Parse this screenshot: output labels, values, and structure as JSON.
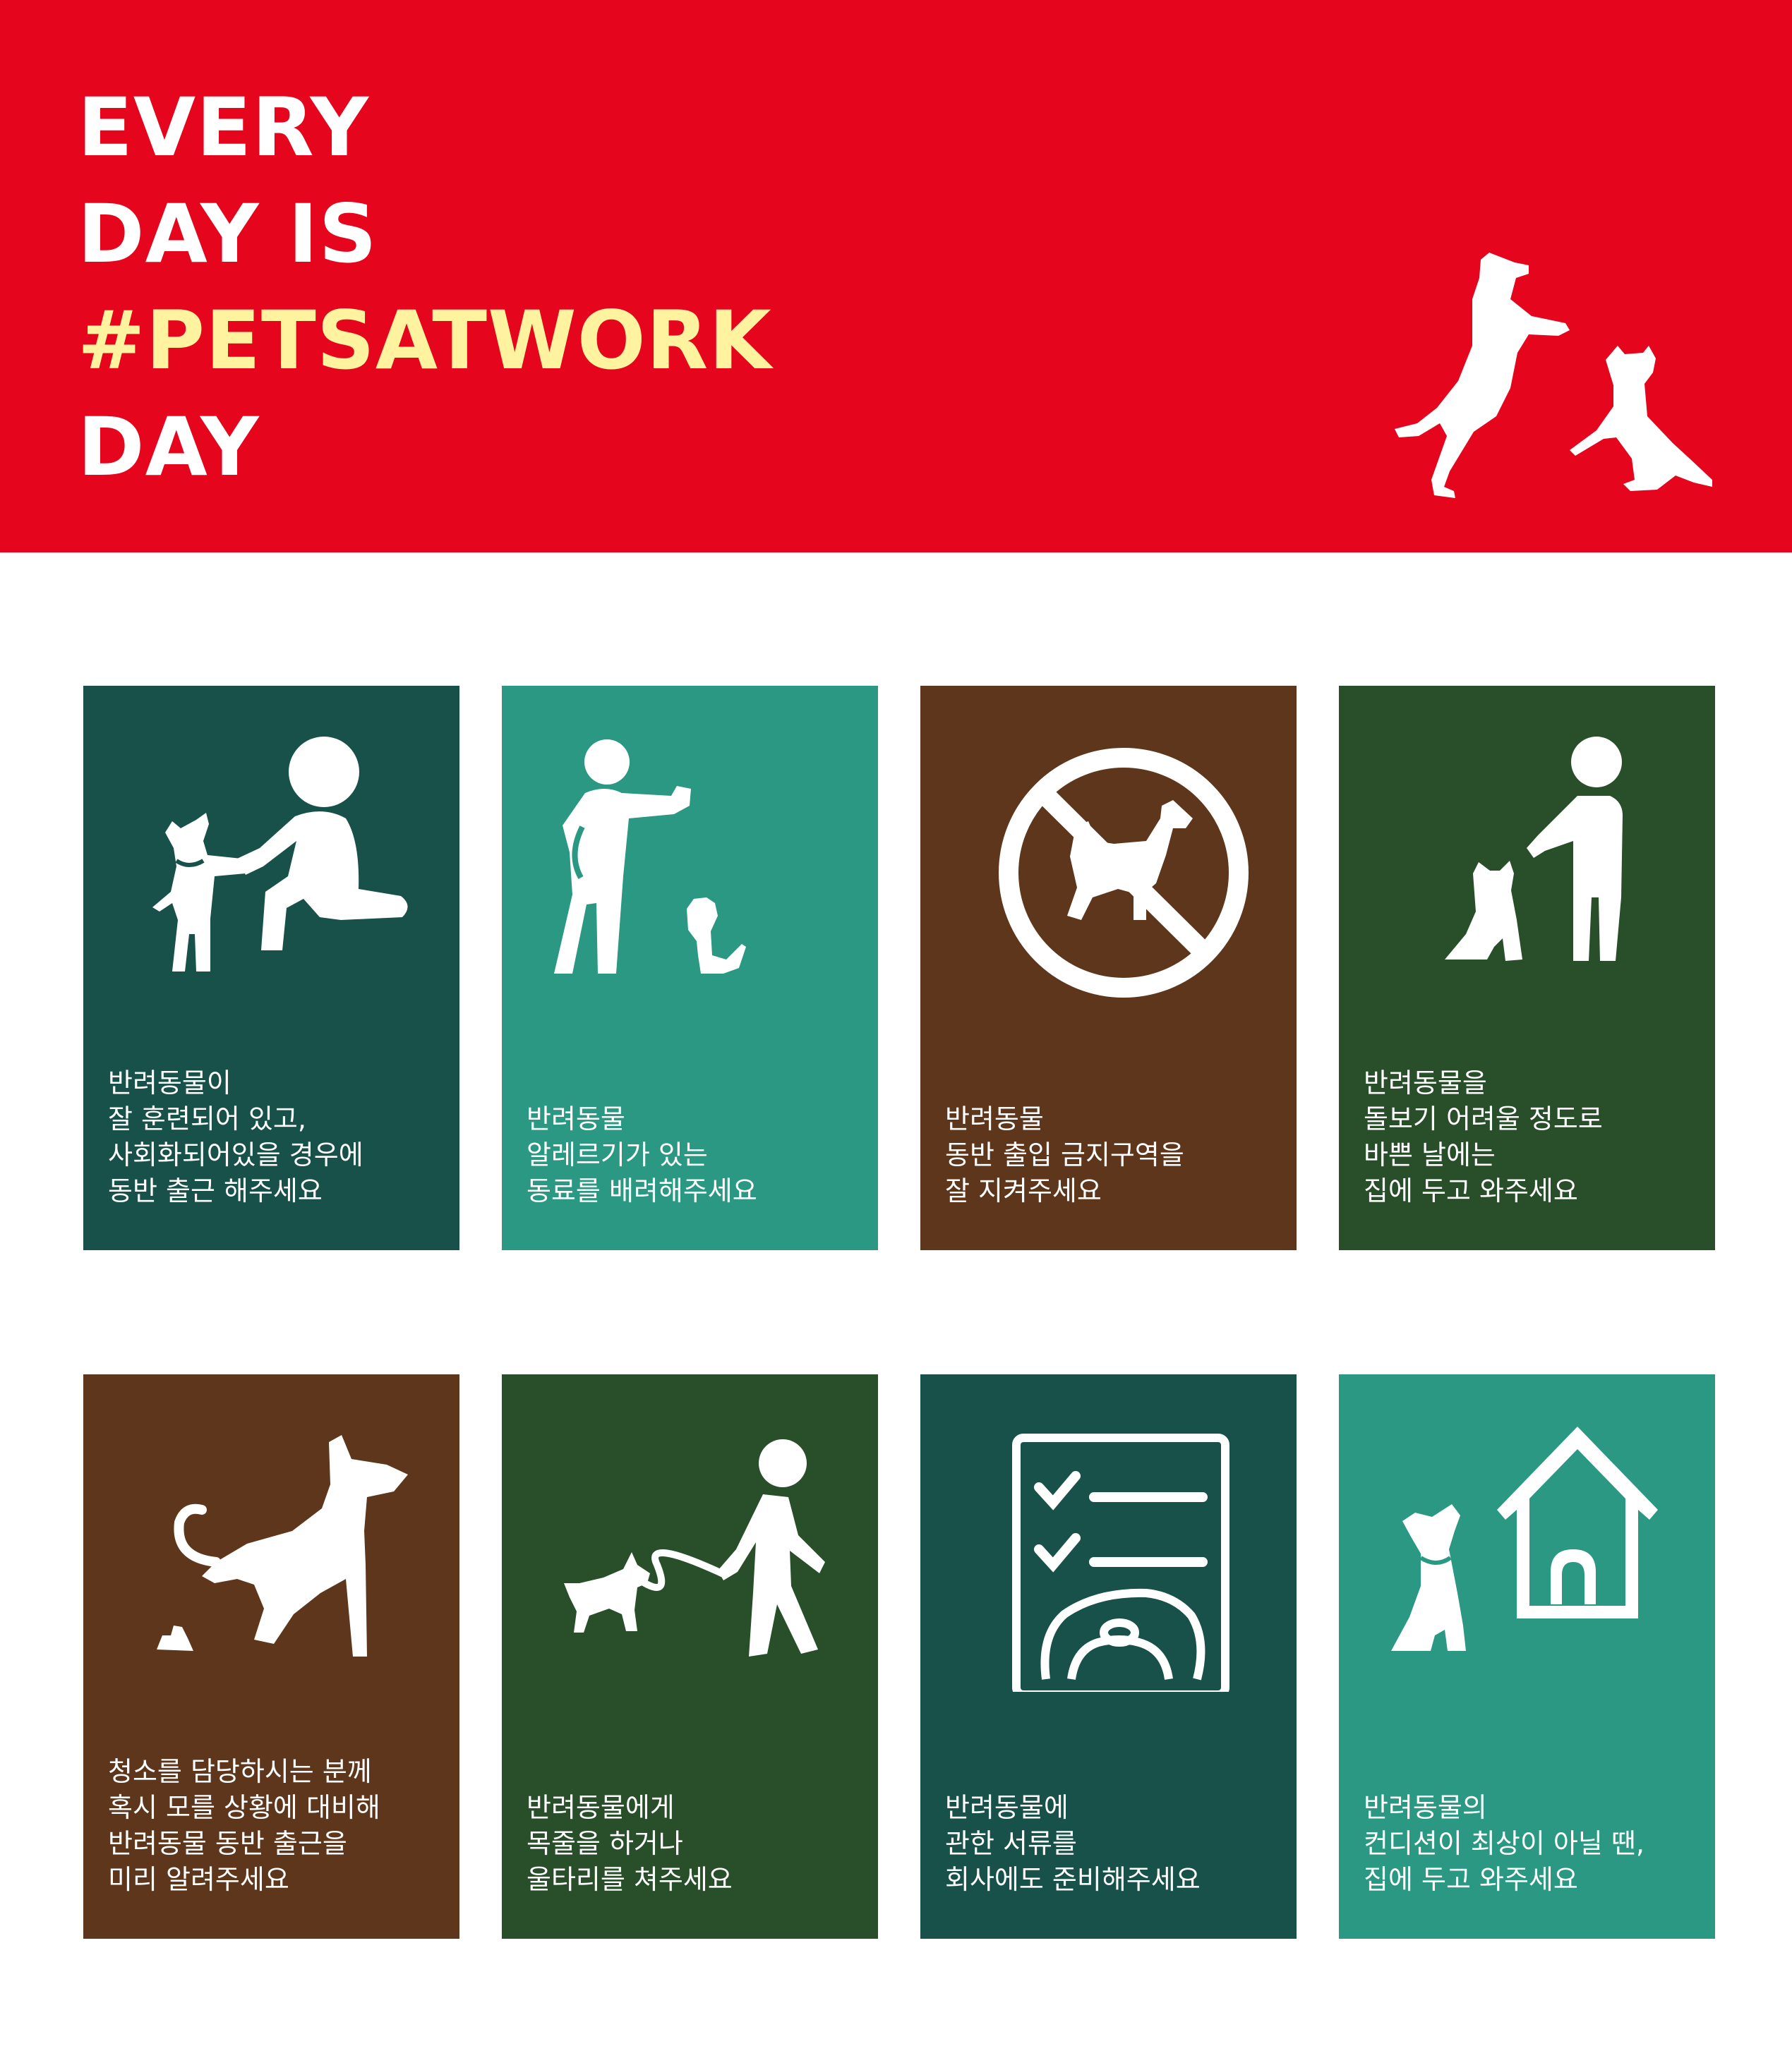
{
  "header": {
    "line1": "EVERY",
    "line2": "DAY IS",
    "hashtag": "#PETSATWORK",
    "line4": "DAY",
    "background_color": "#e5051c",
    "hashtag_color": "#fff3a0",
    "art_icon": "two-dogs-playing-icon"
  },
  "cards": [
    {
      "icon": "kneeling-person-with-dog-icon",
      "bg": "#17514a",
      "text": "반려동물이\n잘 훈련되어 있고,\n사회화되어있을 경우에\n동반 출근 해주세요"
    },
    {
      "icon": "person-commanding-sitting-dog-icon",
      "bg": "#2a9882",
      "text": "반려동물\n알레르기가 있는\n동료를 배려해주세요"
    },
    {
      "icon": "no-dogs-allowed-icon",
      "bg": "#5e361c",
      "text": "반려동물\n동반 출입 금지구역을\n잘 지켜주세요"
    },
    {
      "icon": "person-with-sitting-dog-icon",
      "bg": "#294f2a",
      "text": "반려동물을\n돌보기 어려울 정도로\n바쁜 날에는\n집에 두고 와주세요"
    },
    {
      "icon": "dog-pooping-icon",
      "bg": "#5e361c",
      "text": "청소를 담당하시는 분께\n혹시 모를 상황에 대비해\n반려동물 동반 출근을\n미리 알려주세요"
    },
    {
      "icon": "person-walking-dog-on-leash-icon",
      "bg": "#294f2a",
      "text": "반려동물에게\n목줄을 하거나\n울타리를 쳐주세요"
    },
    {
      "icon": "checklist-with-dog-icon",
      "bg": "#17514a",
      "text": "반려동물에\n관한 서류를\n회사에도 준비해주세요"
    },
    {
      "icon": "dog-with-doghouse-icon",
      "bg": "#2a9882",
      "text": "반려동물의\n컨디션이 최상이 아닐 땐,\n집에 두고 와주세요"
    }
  ]
}
